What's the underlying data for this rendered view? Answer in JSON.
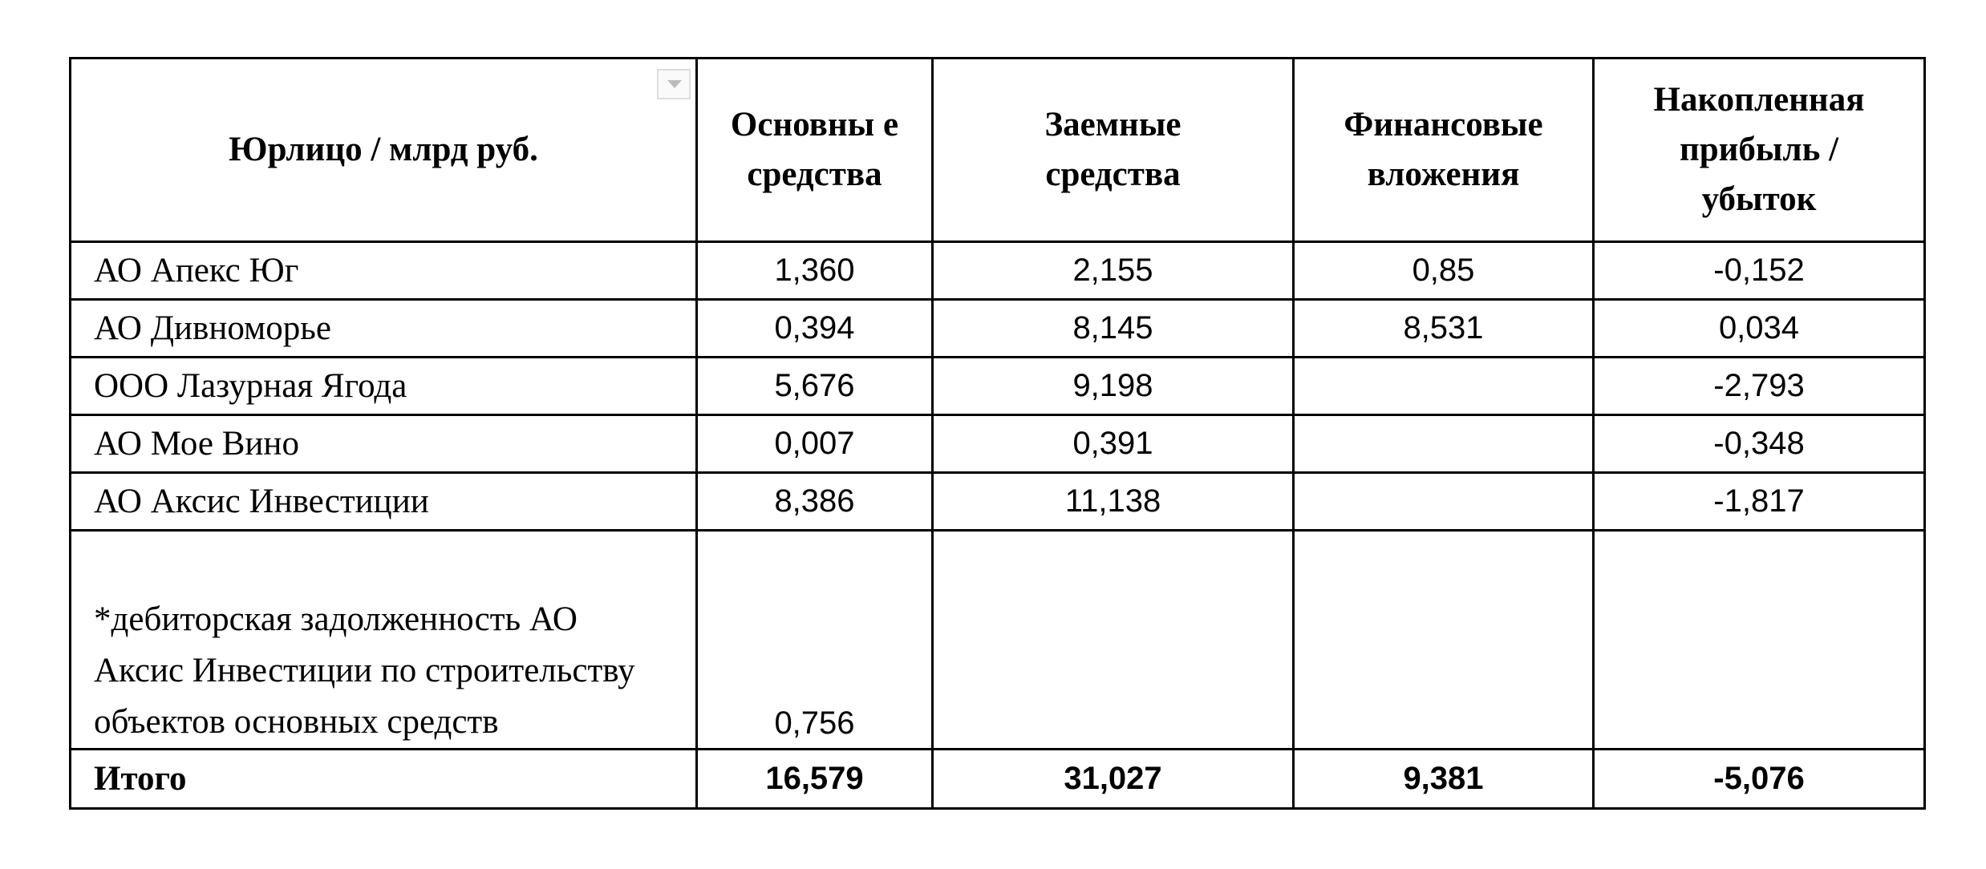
{
  "headers": [
    "Юрлицо / млрд руб.",
    "Основны е средства",
    "Заемные средства",
    "Финансовые вложения",
    "Накопленная прибыль / убыток"
  ],
  "rows": [
    {
      "name": "АО Апекс Юг",
      "fixed_assets": "1,360",
      "borrowed": "2,155",
      "financial": "0,85",
      "profit": "-0,152"
    },
    {
      "name": "АО Дивноморье",
      "fixed_assets": "0,394",
      "borrowed": "8,145",
      "financial": "8,531",
      "profit": "0,034"
    },
    {
      "name": "ООО Лазурная Ягода",
      "fixed_assets": "5,676",
      "borrowed": "9,198",
      "financial": "",
      "profit": "-2,793"
    },
    {
      "name": "АО Мое Вино",
      "fixed_assets": "0,007",
      "borrowed": "0,391",
      "financial": "",
      "profit": "-0,348"
    },
    {
      "name": "АО Аксис Инвестиции",
      "fixed_assets": "8,386",
      "borrowed": "11,138",
      "financial": "",
      "profit": "-1,817"
    },
    {
      "name": "*дебиторская задолженность АО Аксис Инвестиции по строительству объектов основных средств",
      "fixed_assets": "0,756",
      "borrowed": "",
      "financial": "",
      "profit": ""
    }
  ],
  "total": {
    "name": "Итого",
    "fixed_assets": "16,579",
    "borrowed": "31,027",
    "financial": "9,381",
    "profit": "-5,076"
  },
  "icons": {
    "filter": "filter-dropdown-icon"
  }
}
